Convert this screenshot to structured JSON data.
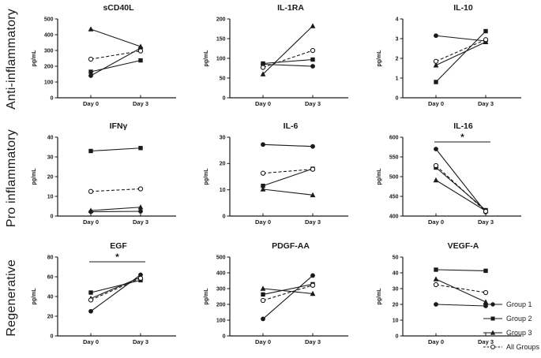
{
  "figure": {
    "row_groups": [
      {
        "label": "Anti-inflammatory"
      },
      {
        "label": "Pro inflammatory"
      },
      {
        "label": "Regenerative"
      }
    ],
    "legend": {
      "items": [
        {
          "label": "Group 1",
          "marker": "filled-circle",
          "line": "solid"
        },
        {
          "label": "Group 2",
          "marker": "filled-square",
          "line": "solid"
        },
        {
          "label": "Group 3",
          "marker": "filled-triangle",
          "line": "solid"
        },
        {
          "label": "All Groups",
          "marker": "open-circle",
          "line": "dashed"
        }
      ]
    },
    "colors": {
      "ink": "#1a1a1a",
      "background": "#ffffff"
    }
  },
  "chart_data": [
    {
      "type": "line",
      "title": "sCD40L",
      "group": "Anti-inflammatory",
      "ylabel": "pg/mL",
      "x": [
        "Day 0",
        "Day 3"
      ],
      "ylim": [
        0,
        500
      ],
      "yticks": [
        0,
        100,
        200,
        300,
        400,
        500
      ],
      "significance": null,
      "series": [
        {
          "name": "Group 1",
          "values": [
            140,
            315
          ]
        },
        {
          "name": "Group 2",
          "values": [
            165,
            237
          ]
        },
        {
          "name": "Group 3",
          "values": [
            435,
            325
          ]
        },
        {
          "name": "All Groups",
          "values": [
            245,
            297
          ]
        }
      ]
    },
    {
      "type": "line",
      "title": "IL-1RA",
      "group": "Anti-inflammatory",
      "ylabel": "pg/mL",
      "x": [
        "Day 0",
        "Day 3"
      ],
      "ylim": [
        0,
        200
      ],
      "yticks": [
        0,
        50,
        100,
        150,
        200
      ],
      "significance": null,
      "series": [
        {
          "name": "Group 1",
          "values": [
            85,
            80
          ]
        },
        {
          "name": "Group 2",
          "values": [
            87,
            97
          ]
        },
        {
          "name": "Group 3",
          "values": [
            60,
            182
          ]
        },
        {
          "name": "All Groups",
          "values": [
            77,
            120
          ]
        }
      ]
    },
    {
      "type": "line",
      "title": "IL-10",
      "group": "Anti-inflammatory",
      "ylabel": "pg/mL",
      "x": [
        "Day 0",
        "Day 3"
      ],
      "ylim": [
        0,
        4
      ],
      "yticks": [
        0,
        1,
        2,
        3,
        4
      ],
      "significance": null,
      "series": [
        {
          "name": "Group 1",
          "values": [
            3.15,
            2.88
          ]
        },
        {
          "name": "Group 2",
          "values": [
            0.8,
            3.38
          ]
        },
        {
          "name": "Group 3",
          "values": [
            1.65,
            2.83
          ]
        },
        {
          "name": "All Groups",
          "values": [
            1.85,
            2.95
          ]
        }
      ]
    },
    {
      "type": "line",
      "title": "IFNγ",
      "group": "Pro inflammatory",
      "ylabel": "pg/mL",
      "x": [
        "Day 0",
        "Day 3"
      ],
      "ylim": [
        0,
        40
      ],
      "yticks": [
        0,
        10,
        20,
        30,
        40
      ],
      "significance": null,
      "series": [
        {
          "name": "Group 1",
          "values": [
            2.2,
            2.4
          ]
        },
        {
          "name": "Group 2",
          "values": [
            33,
            34.5
          ]
        },
        {
          "name": "Group 3",
          "values": [
            2.8,
            4.5
          ]
        },
        {
          "name": "All Groups",
          "values": [
            12.5,
            13.8
          ]
        }
      ]
    },
    {
      "type": "line",
      "title": "IL-6",
      "group": "Pro inflammatory",
      "ylabel": "pg/mL",
      "x": [
        "Day 0",
        "Day 3"
      ],
      "ylim": [
        0,
        30
      ],
      "yticks": [
        0,
        10,
        20,
        30
      ],
      "significance": null,
      "series": [
        {
          "name": "Group 1",
          "values": [
            27.2,
            26.5
          ]
        },
        {
          "name": "Group 2",
          "values": [
            11.5,
            18
          ]
        },
        {
          "name": "Group 3",
          "values": [
            10.2,
            8
          ]
        },
        {
          "name": "All Groups",
          "values": [
            16.3,
            17.8
          ]
        }
      ]
    },
    {
      "type": "line",
      "title": "IL-16",
      "group": "Pro inflammatory",
      "ylabel": "pg/mL",
      "x": [
        "Day 0",
        "Day 3"
      ],
      "ylim": [
        400,
        600
      ],
      "yticks": [
        400,
        450,
        500,
        550,
        600
      ],
      "significance": "*",
      "series": [
        {
          "name": "Group 1",
          "values": [
            570,
            410
          ]
        },
        {
          "name": "Group 2",
          "values": [
            523,
            415
          ]
        },
        {
          "name": "Group 3",
          "values": [
            491,
            413
          ]
        },
        {
          "name": "All Groups",
          "values": [
            528,
            412
          ]
        }
      ]
    },
    {
      "type": "line",
      "title": "EGF",
      "group": "Regenerative",
      "ylabel": "pg/mL",
      "x": [
        "Day 0",
        "Day 3"
      ],
      "ylim": [
        0,
        80
      ],
      "yticks": [
        0,
        20,
        40,
        60,
        80
      ],
      "significance": "*",
      "series": [
        {
          "name": "Group 1",
          "values": [
            25,
            62
          ]
        },
        {
          "name": "Group 2",
          "values": [
            44,
            56.5
          ]
        },
        {
          "name": "Group 3",
          "values": [
            38,
            59.5
          ]
        },
        {
          "name": "All Groups",
          "values": [
            36.5,
            58.5
          ]
        }
      ]
    },
    {
      "type": "line",
      "title": "PDGF-AA",
      "group": "Regenerative",
      "ylabel": "pg/mL",
      "x": [
        "Day 0",
        "Day 3"
      ],
      "ylim": [
        0,
        500
      ],
      "yticks": [
        0,
        100,
        200,
        300,
        400,
        500
      ],
      "significance": null,
      "series": [
        {
          "name": "Group 1",
          "values": [
            108,
            383
          ]
        },
        {
          "name": "Group 2",
          "values": [
            263,
            328
          ]
        },
        {
          "name": "Group 3",
          "values": [
            300,
            268
          ]
        },
        {
          "name": "All Groups",
          "values": [
            225,
            321
          ]
        }
      ]
    },
    {
      "type": "line",
      "title": "VEGF-A",
      "group": "Regenerative",
      "ylabel": "pg/mL",
      "x": [
        "Day 0",
        "Day 3"
      ],
      "ylim": [
        0,
        50
      ],
      "yticks": [
        0,
        10,
        20,
        30,
        40,
        50
      ],
      "significance": null,
      "series": [
        {
          "name": "Group 1",
          "values": [
            20,
            19
          ]
        },
        {
          "name": "Group 2",
          "values": [
            42,
            41.3
          ]
        },
        {
          "name": "Group 3",
          "values": [
            36,
            21.5
          ]
        },
        {
          "name": "All Groups",
          "values": [
            32.5,
            27.5
          ]
        }
      ]
    }
  ]
}
